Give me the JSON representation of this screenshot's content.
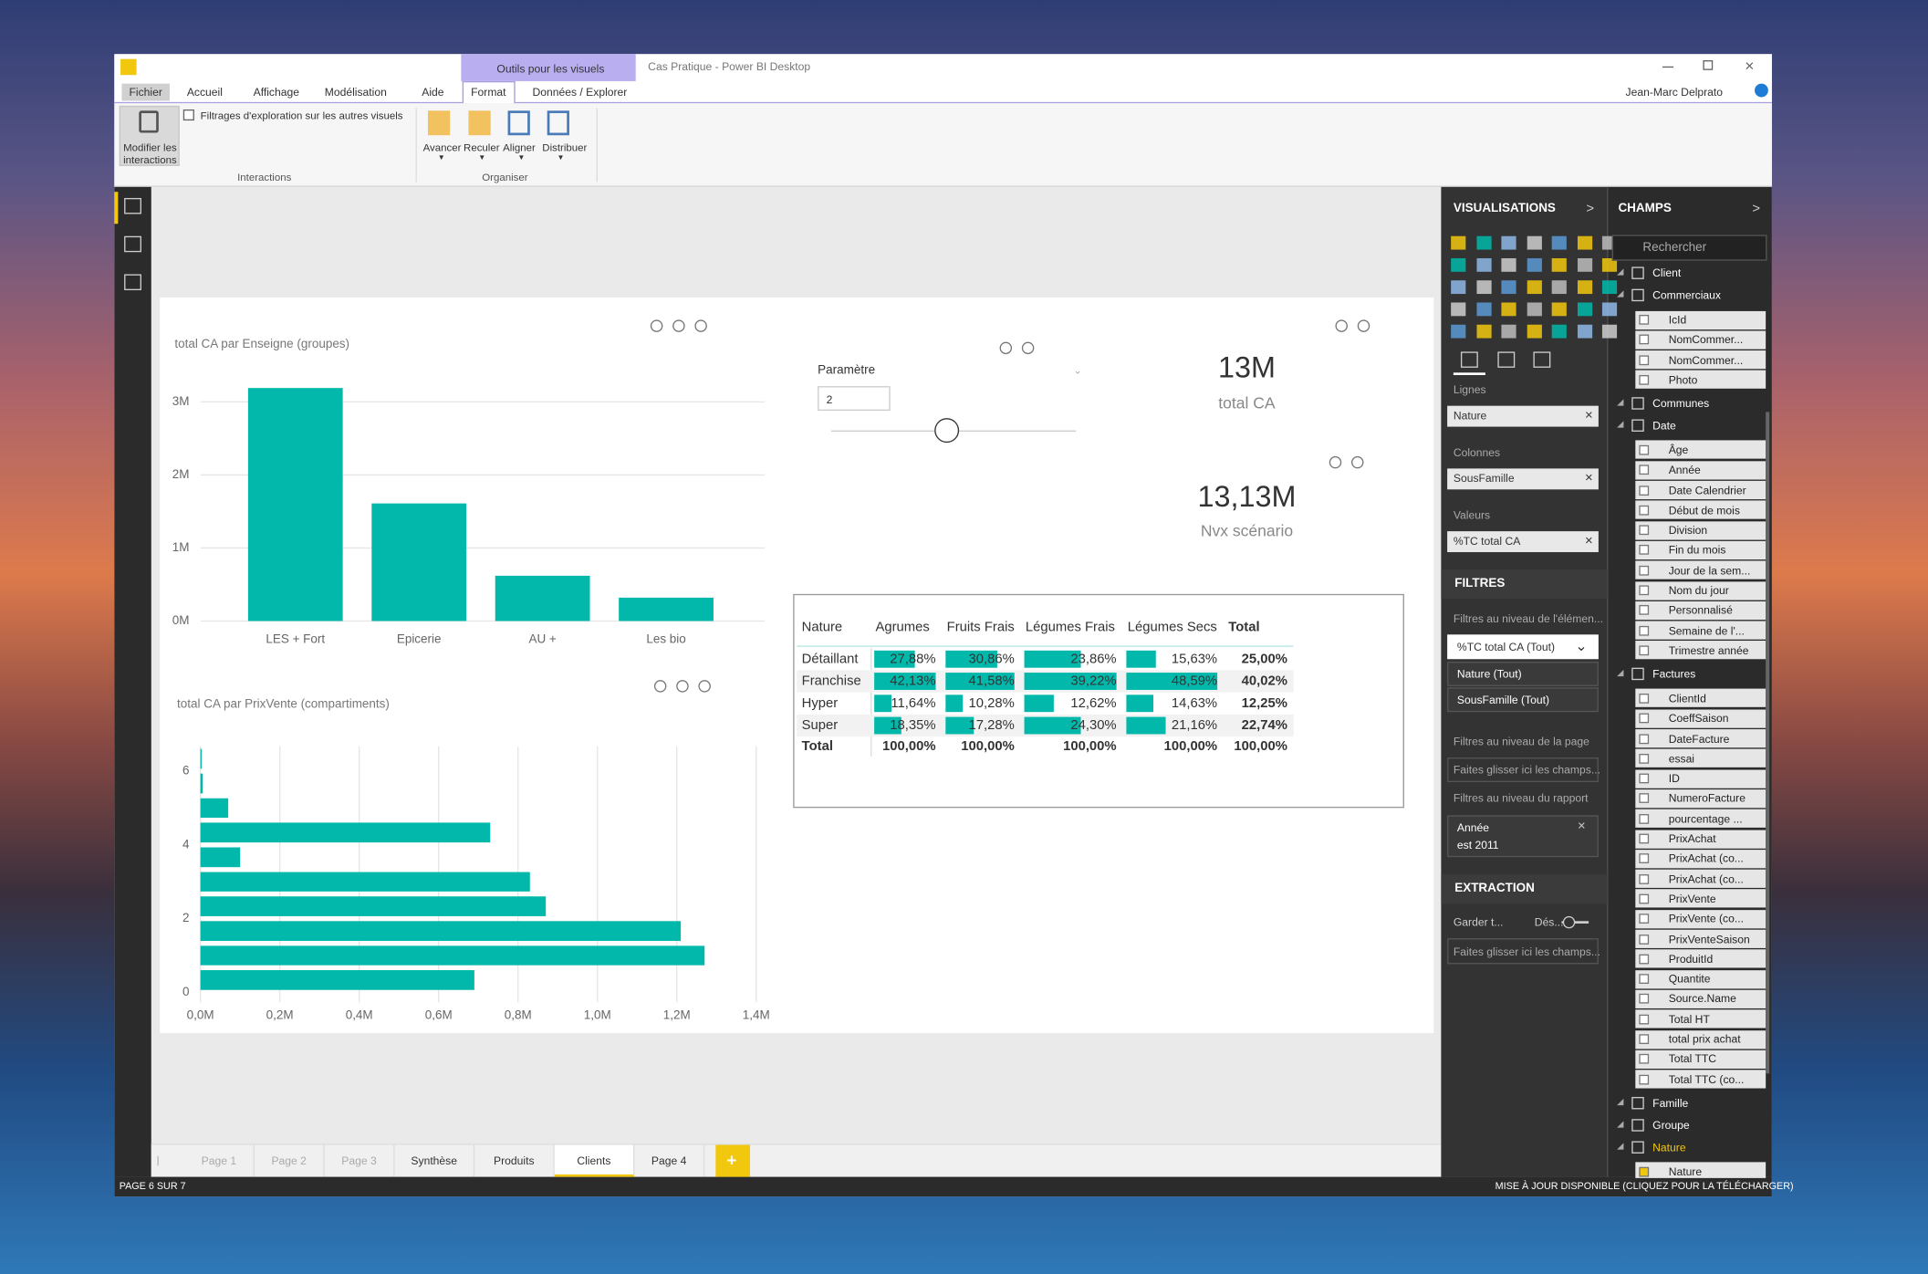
{
  "window": {
    "context_tab": "Outils pour les visuels",
    "title": "Cas Pratique - Power BI Desktop",
    "user": "Jean-Marc Delprato"
  },
  "ribbon": {
    "tabs": [
      "Fichier",
      "Accueil",
      "Affichage",
      "Modélisation",
      "Aide",
      "Format",
      "Données / Explorer"
    ],
    "active_tab": 5,
    "interactions_button": "Modifier les interactions",
    "drill_filter_option": "Filtrages d'exploration sur les autres visuels",
    "interactions_group": "Interactions",
    "arrange_buttons": [
      "Avancer",
      "Reculer",
      "Aligner",
      "Distribuer"
    ],
    "arrange_group": "Organiser"
  },
  "report": {
    "bar_chart": {
      "type": "bar",
      "title": "total CA par Enseigne (groupes)",
      "categories": [
        "LES + Fort",
        "Epicerie",
        "AU +",
        "Les bio"
      ],
      "values": [
        3.19,
        1.61,
        0.62,
        0.32
      ],
      "color": "#01b8aa",
      "ylim": [
        0,
        3.3
      ],
      "yticks": [
        {
          "value": 0,
          "label": "0M"
        },
        {
          "value": 1,
          "label": "1M"
        },
        {
          "value": 2,
          "label": "2M"
        },
        {
          "value": 3,
          "label": "3M"
        }
      ],
      "grid": true
    },
    "bin_chart": {
      "type": "histogram",
      "orientation": "horizontal",
      "title": "total CA par PrixVente (compartiments)",
      "bins": [
        0,
        0.67,
        1.33,
        2,
        2.67,
        3.33,
        4,
        4.67,
        5.33,
        6,
        6.67
      ],
      "values": [
        0.69,
        1.27,
        1.21,
        0.87,
        0.83,
        0.1,
        0.73,
        0.07,
        0.006,
        0.003
      ],
      "color": "#01b8aa",
      "xlim": [
        0,
        1.4
      ],
      "xticks": [
        {
          "value": 0,
          "label": "0,0M"
        },
        {
          "value": 0.2,
          "label": "0,2M"
        },
        {
          "value": 0.4,
          "label": "0,4M"
        },
        {
          "value": 0.6,
          "label": "0,6M"
        },
        {
          "value": 0.8,
          "label": "0,8M"
        },
        {
          "value": 1,
          "label": "1,0M"
        },
        {
          "value": 1.2,
          "label": "1,2M"
        },
        {
          "value": 1.4,
          "label": "1,4M"
        }
      ],
      "ylim": [
        0,
        6.67
      ],
      "yticks": [
        0,
        2,
        4,
        6
      ],
      "grid": true
    },
    "slicer": {
      "label": "Paramètre",
      "value": 2
    },
    "cards": [
      {
        "value": "13M",
        "label": "total CA"
      },
      {
        "value": "13,13M",
        "label": "Nvx scénario"
      }
    ],
    "matrix": {
      "columns": [
        "Nature",
        "Agrumes",
        "Fruits Frais",
        "Légumes Frais",
        "Légumes Secs",
        "Total"
      ],
      "bar_color": "#01b8aa",
      "rows": [
        {
          "name": "Détaillant",
          "values": [
            27.88,
            30.86,
            23.86,
            15.63
          ],
          "value_labels": [
            "27,88%",
            "30,86%",
            "23,86%",
            "15,63%"
          ],
          "total": "25,00%"
        },
        {
          "name": "Franchise",
          "values": [
            42.13,
            41.58,
            39.22,
            48.59
          ],
          "value_labels": [
            "42,13%",
            "41,58%",
            "39,22%",
            "48,59%"
          ],
          "total": "40,02%"
        },
        {
          "name": "Hyper",
          "values": [
            11.64,
            10.28,
            12.62,
            14.63
          ],
          "value_labels": [
            "11,64%",
            "10,28%",
            "12,62%",
            "14,63%"
          ],
          "total": "12,25%"
        },
        {
          "name": "Super",
          "values": [
            18.35,
            17.28,
            24.3,
            21.16
          ],
          "value_labels": [
            "18,35%",
            "17,28%",
            "24,30%",
            "21,16%"
          ],
          "total": "22,74%"
        }
      ],
      "total_row": {
        "name": "Total",
        "labels": [
          "100,00%",
          "100,00%",
          "100,00%",
          "100,00%",
          "100,00%"
        ]
      }
    }
  },
  "visualizations_pane": {
    "title": "VISUALISATIONS",
    "wells": [
      {
        "label": "Lignes",
        "field": "Nature"
      },
      {
        "label": "Colonnes",
        "field": "SousFamille"
      },
      {
        "label": "Valeurs",
        "field": "%TC total CA"
      }
    ],
    "filters_title": "FILTRES",
    "visual_filters_label": "Filtres au niveau de l'élémen...",
    "visual_filters": [
      "%TC total CA (Tout)",
      "Nature (Tout)",
      "SousFamille (Tout)"
    ],
    "page_filters_label": "Filtres au niveau de la page",
    "page_drop": "Faites glisser ici les champs...",
    "report_filters_label": "Filtres au niveau du rapport",
    "report_filter": {
      "field": "Année",
      "condition": "est 2011"
    },
    "drillthrough_title": "EXTRACTION",
    "keep_all_label": "Garder t...",
    "toggle_label": "Dés...",
    "drillthrough_drop": "Faites glisser ici les champs..."
  },
  "fields_pane": {
    "title": "CHAMPS",
    "search_placeholder": "Rechercher",
    "items": [
      {
        "label": "Client",
        "kind": "table"
      },
      {
        "label": "Commerciaux",
        "kind": "table"
      },
      {
        "label": "IcId",
        "kind": "field"
      },
      {
        "label": "NomCommer...",
        "kind": "field"
      },
      {
        "label": "NomCommer...",
        "kind": "field"
      },
      {
        "label": "Photo",
        "kind": "field"
      },
      {
        "label": "Communes",
        "kind": "table"
      },
      {
        "label": "Date",
        "kind": "table"
      },
      {
        "label": "Âge",
        "kind": "field"
      },
      {
        "label": "Année",
        "kind": "field"
      },
      {
        "label": "Date Calendrier",
        "kind": "field"
      },
      {
        "label": "Début de mois",
        "kind": "field"
      },
      {
        "label": "Division",
        "kind": "field"
      },
      {
        "label": "Fin du mois",
        "kind": "field"
      },
      {
        "label": "Jour de la sem...",
        "kind": "field"
      },
      {
        "label": "Nom du jour",
        "kind": "field"
      },
      {
        "label": "Personnalisé",
        "kind": "field"
      },
      {
        "label": "Semaine de l'...",
        "kind": "field"
      },
      {
        "label": "Trimestre année",
        "kind": "field"
      },
      {
        "label": "Factures",
        "kind": "table"
      },
      {
        "label": "ClientId",
        "kind": "field"
      },
      {
        "label": "CoeffSaison",
        "kind": "field"
      },
      {
        "label": "DateFacture",
        "kind": "field"
      },
      {
        "label": "essai",
        "kind": "field"
      },
      {
        "label": "ID",
        "kind": "field"
      },
      {
        "label": "NumeroFacture",
        "kind": "field"
      },
      {
        "label": "pourcentage ...",
        "kind": "field"
      },
      {
        "label": "PrixAchat",
        "kind": "field"
      },
      {
        "label": "PrixAchat (co...",
        "kind": "field"
      },
      {
        "label": "PrixAchat (co...",
        "kind": "field"
      },
      {
        "label": "PrixVente",
        "kind": "field"
      },
      {
        "label": "PrixVente (co...",
        "kind": "field"
      },
      {
        "label": "PrixVenteSaison",
        "kind": "field"
      },
      {
        "label": "ProduitId",
        "kind": "field"
      },
      {
        "label": "Quantite",
        "kind": "field"
      },
      {
        "label": "Source.Name",
        "kind": "field"
      },
      {
        "label": "Total HT",
        "kind": "field"
      },
      {
        "label": "total prix achat",
        "kind": "field"
      },
      {
        "label": "Total TTC",
        "kind": "field"
      },
      {
        "label": "Total TTC (co...",
        "kind": "field"
      },
      {
        "label": "Famille",
        "kind": "table"
      },
      {
        "label": "Groupe",
        "kind": "table"
      },
      {
        "label": "Nature",
        "kind": "table",
        "checked": true
      },
      {
        "label": "Nature",
        "kind": "field",
        "checked": true
      }
    ]
  },
  "page_tabs": {
    "tabs": [
      "Page 1",
      "Page 2",
      "Page 3",
      "Synthèse",
      "Produits",
      "Clients",
      "Page 4"
    ],
    "active": 5
  },
  "status_bar": {
    "page_indicator": "PAGE 6 SUR 7",
    "update_notice": "MISE À JOUR DISPONIBLE (CLIQUEZ POUR LA TÉLÉCHARGER)"
  }
}
